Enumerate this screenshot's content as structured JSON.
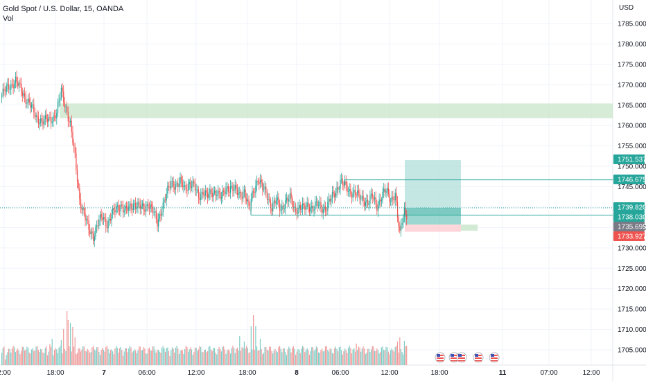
{
  "header": {
    "symbol": "Gold Spot / U.S. Dollar, 15, OANDA",
    "volume_label": "Vol",
    "currency": "USD"
  },
  "colors": {
    "up": "#26a69a",
    "down": "#ef5350",
    "up_vol": "#80cbc4",
    "down_vol": "#ef9a9a",
    "zone": "#c8e6c9",
    "target": "#b2dfdb",
    "stop": "#ffcdd2",
    "line": "#26a69a",
    "price_line": "#26a69a",
    "grid": "#f0f3fa"
  },
  "chart_data": {
    "type": "candlestick",
    "y_axis": {
      "ticks": [
        "1785.000",
        "1780.000",
        "1775.000",
        "1770.000",
        "1765.000",
        "1760.000",
        "1755.000",
        "1750.000",
        "1745.000",
        "1740.000",
        "1735.000",
        "1730.000",
        "1725.000",
        "1720.000",
        "1715.000",
        "1710.000",
        "1705.000"
      ],
      "range": [
        1700.5,
        1787.5
      ]
    },
    "x_axis": {
      "ticks": [
        {
          "label": "2:00",
          "bold": false
        },
        {
          "label": "18:00",
          "bold": false
        },
        {
          "label": "7",
          "bold": true
        },
        {
          "label": "06:00",
          "bold": false
        },
        {
          "label": "12:00",
          "bold": false
        },
        {
          "label": "18:00",
          "bold": false
        },
        {
          "label": "8",
          "bold": true
        },
        {
          "label": "06:00",
          "bold": false
        },
        {
          "label": "12:00",
          "bold": false
        },
        {
          "label": "18:00",
          "bold": false
        },
        {
          "label": "11",
          "bold": true
        },
        {
          "label": "07:00",
          "bold": false
        },
        {
          "label": "12:00",
          "bold": false
        }
      ]
    },
    "price_labels": [
      {
        "value": "1751.537",
        "price": 1751.537,
        "color": "#26a69a"
      },
      {
        "value": "1746.675",
        "price": 1746.675,
        "color": "#26a69a"
      },
      {
        "value": "1739.820",
        "price": 1739.82,
        "color": "#26a69a"
      },
      {
        "value": "1738.030",
        "price": 1738.03,
        "color": "#26a69a"
      },
      {
        "value": "1735.695",
        "price": 1735.695,
        "color": "#787b86"
      },
      {
        "value": "1733.927",
        "price": 1733.927,
        "color": "#ef5350"
      }
    ],
    "zones": [
      {
        "type": "supply",
        "from": 1761.8,
        "to": 1765.4
      },
      {
        "type": "long-target",
        "from": 1738.03,
        "to": 1751.537
      },
      {
        "type": "long-entry",
        "from": 1735.695,
        "to": 1739.82
      },
      {
        "type": "long-stop",
        "from": 1733.927,
        "to": 1735.695
      }
    ],
    "levels": [
      1746.675,
      1738.03
    ],
    "current_price": 1739.82,
    "waypoints": [
      [
        0,
        1767.5
      ],
      [
        6,
        1769.5
      ],
      [
        12,
        1771.0
      ],
      [
        18,
        1768.0
      ],
      [
        24,
        1765.5
      ],
      [
        30,
        1762.0
      ],
      [
        36,
        1761.0
      ],
      [
        42,
        1761.5
      ],
      [
        48,
        1763.0
      ],
      [
        52,
        1768.5
      ],
      [
        56,
        1764.5
      ],
      [
        60,
        1760.0
      ],
      [
        64,
        1752.0
      ],
      [
        68,
        1742.0
      ],
      [
        72,
        1738.0
      ],
      [
        76,
        1734.5
      ],
      [
        80,
        1733.0
      ],
      [
        84,
        1736.0
      ],
      [
        88,
        1737.5
      ],
      [
        92,
        1736.0
      ],
      [
        96,
        1738.0
      ],
      [
        100,
        1739.5
      ],
      [
        104,
        1740.5
      ],
      [
        108,
        1739.0
      ],
      [
        112,
        1739.8
      ],
      [
        116,
        1741.0
      ],
      [
        120,
        1740.0
      ],
      [
        124,
        1739.5
      ],
      [
        128,
        1741.0
      ],
      [
        132,
        1739.0
      ],
      [
        136,
        1736.0
      ],
      [
        140,
        1740.0
      ],
      [
        144,
        1743.0
      ],
      [
        148,
        1746.0
      ],
      [
        152,
        1745.5
      ],
      [
        156,
        1746.0
      ],
      [
        160,
        1744.5
      ],
      [
        164,
        1746.0
      ],
      [
        168,
        1745.0
      ],
      [
        172,
        1742.5
      ],
      [
        176,
        1744.0
      ],
      [
        180,
        1742.5
      ],
      [
        184,
        1743.5
      ],
      [
        188,
        1744.0
      ],
      [
        192,
        1742.0
      ],
      [
        196,
        1744.5
      ],
      [
        200,
        1745.0
      ],
      [
        204,
        1744.0
      ],
      [
        208,
        1743.0
      ],
      [
        212,
        1744.0
      ],
      [
        216,
        1739.5
      ],
      [
        220,
        1744.0
      ],
      [
        224,
        1747.0
      ],
      [
        228,
        1744.5
      ],
      [
        232,
        1743.0
      ],
      [
        236,
        1740.0
      ],
      [
        240,
        1741.5
      ],
      [
        244,
        1739.5
      ],
      [
        248,
        1741.5
      ],
      [
        252,
        1742.0
      ],
      [
        256,
        1739.5
      ],
      [
        260,
        1740.0
      ],
      [
        264,
        1739.5
      ],
      [
        268,
        1740.5
      ],
      [
        272,
        1739.8
      ],
      [
        276,
        1740.5
      ],
      [
        280,
        1739.8
      ],
      [
        284,
        1740.0
      ],
      [
        288,
        1742.0
      ],
      [
        292,
        1744.0
      ],
      [
        296,
        1746.3
      ],
      [
        300,
        1745.0
      ],
      [
        304,
        1744.0
      ],
      [
        308,
        1743.5
      ],
      [
        312,
        1742.5
      ],
      [
        316,
        1742.0
      ],
      [
        320,
        1741.0
      ],
      [
        324,
        1742.5
      ],
      [
        328,
        1740.5
      ],
      [
        332,
        1742.5
      ],
      [
        336,
        1744.0
      ],
      [
        340,
        1742.0
      ],
      [
        344,
        1743.0
      ],
      [
        346,
        1737.5
      ],
      [
        348,
        1733.0
      ],
      [
        350,
        1737.0
      ],
      [
        352,
        1739.5
      ],
      [
        354,
        1738.3
      ]
    ],
    "volume": {
      "spikes": [
        [
          3,
          8
        ],
        [
          40,
          14
        ],
        [
          42,
          30
        ],
        [
          44,
          38
        ],
        [
          46,
          22
        ],
        [
          52,
          36
        ],
        [
          54,
          52
        ],
        [
          57,
          78
        ],
        [
          58,
          65
        ],
        [
          60,
          61
        ],
        [
          62,
          55
        ],
        [
          64,
          40
        ],
        [
          84,
          26
        ],
        [
          208,
          42
        ],
        [
          212,
          34
        ],
        [
          218,
          56
        ],
        [
          220,
          72
        ],
        [
          222,
          56
        ],
        [
          226,
          38
        ],
        [
          230,
          26
        ],
        [
          310,
          31
        ],
        [
          346,
          34
        ],
        [
          348,
          40
        ],
        [
          352,
          35
        ],
        [
          354,
          28
        ]
      ],
      "base": 12
    }
  }
}
